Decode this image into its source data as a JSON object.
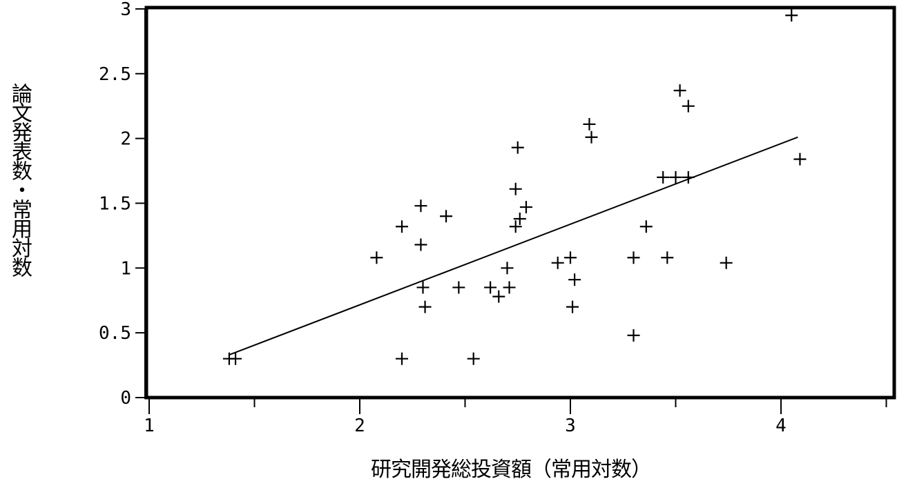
{
  "chart_data": {
    "type": "scatter",
    "title": "",
    "xlabel": "研究開発総投資額（常用対数）",
    "ylabel": "論文発表数・常用対数",
    "xlim": [
      1,
      4.5
    ],
    "ylim": [
      0,
      3
    ],
    "x_ticks": [
      "1",
      "2",
      "3",
      "4"
    ],
    "y_ticks": [
      "0",
      "0.5",
      "1",
      "1.5",
      "2",
      "2.5",
      "3"
    ],
    "grid": false,
    "marker": "plus",
    "series": [
      {
        "points": [
          {
            "x": 1.38,
            "y": 0.3
          },
          {
            "x": 1.41,
            "y": 0.3
          },
          {
            "x": 2.08,
            "y": 1.08
          },
          {
            "x": 2.2,
            "y": 1.32
          },
          {
            "x": 2.2,
            "y": 0.3
          },
          {
            "x": 2.29,
            "y": 1.48
          },
          {
            "x": 2.29,
            "y": 1.18
          },
          {
            "x": 2.3,
            "y": 0.85
          },
          {
            "x": 2.31,
            "y": 0.7
          },
          {
            "x": 2.41,
            "y": 1.4
          },
          {
            "x": 2.47,
            "y": 0.85
          },
          {
            "x": 2.54,
            "y": 0.3
          },
          {
            "x": 2.62,
            "y": 0.85
          },
          {
            "x": 2.66,
            "y": 0.78
          },
          {
            "x": 2.7,
            "y": 1.0
          },
          {
            "x": 2.71,
            "y": 0.85
          },
          {
            "x": 2.74,
            "y": 1.61
          },
          {
            "x": 2.74,
            "y": 1.32
          },
          {
            "x": 2.75,
            "y": 1.93
          },
          {
            "x": 2.76,
            "y": 1.38
          },
          {
            "x": 2.79,
            "y": 1.47
          },
          {
            "x": 2.94,
            "y": 1.04
          },
          {
            "x": 3.0,
            "y": 1.08
          },
          {
            "x": 3.01,
            "y": 0.7
          },
          {
            "x": 3.02,
            "y": 0.91
          },
          {
            "x": 3.09,
            "y": 2.11
          },
          {
            "x": 3.1,
            "y": 2.01
          },
          {
            "x": 3.3,
            "y": 0.48
          },
          {
            "x": 3.3,
            "y": 1.08
          },
          {
            "x": 3.36,
            "y": 1.32
          },
          {
            "x": 3.44,
            "y": 1.7
          },
          {
            "x": 3.46,
            "y": 1.08
          },
          {
            "x": 3.5,
            "y": 1.7
          },
          {
            "x": 3.52,
            "y": 2.37
          },
          {
            "x": 3.56,
            "y": 1.7
          },
          {
            "x": 3.56,
            "y": 2.25
          },
          {
            "x": 3.74,
            "y": 1.04
          },
          {
            "x": 4.05,
            "y": 2.95
          },
          {
            "x": 4.09,
            "y": 1.84
          }
        ]
      }
    ],
    "trend_line": {
      "x": [
        1.38,
        4.08
      ],
      "y": [
        0.33,
        2.01
      ]
    }
  }
}
